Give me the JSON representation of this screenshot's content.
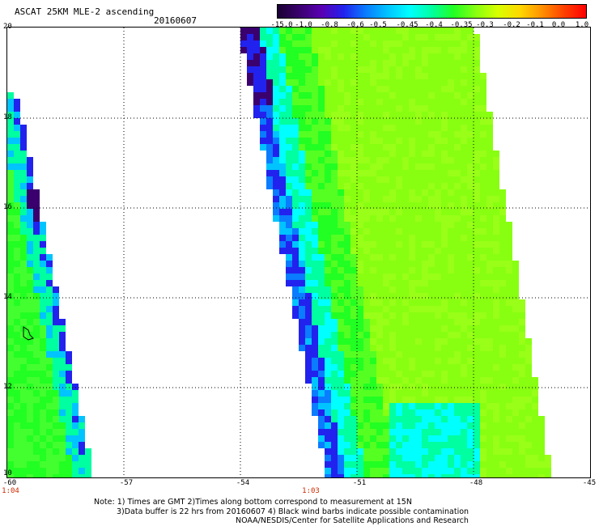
{
  "header": {
    "title": "ASCAT 25KM MLE-2 ascending",
    "date": "20160607"
  },
  "colorbar": {
    "labels": [
      "-15.0",
      "-1.0",
      "-0.8",
      "-0.6",
      "-0.5",
      "-0.45",
      "-0.4",
      "-0.35",
      "-0.3",
      "-0.2",
      "-0.1",
      "0.0",
      "1.0"
    ],
    "colors": [
      "#1a0033",
      "#3a006e",
      "#5a00b4",
      "#2222ee",
      "#0a7cff",
      "#00c4ff",
      "#00ffff",
      "#00ffa0",
      "#22ff22",
      "#88ff10",
      "#d8ff00",
      "#ffd800",
      "#ff9000",
      "#ff4000",
      "#ff0000"
    ]
  },
  "axes": {
    "lon_labels": [
      "-60",
      "-57",
      "-54",
      "-51",
      "-48",
      "-45"
    ],
    "lat_labels": [
      "20",
      "18",
      "16",
      "14",
      "12",
      "10"
    ],
    "lon_range": [
      -60,
      -45
    ],
    "lat_range": [
      10,
      20
    ]
  },
  "swath_times": [
    "1:04",
    "1:03"
  ],
  "notes": [
    "Note: 1) Times are GMT 2)Times along bottom correspond to measurement at 15N",
    "3)Data buffer is 22 hrs from 20160607 4) Black wind barbs indicate possible contamination",
    "NOAA/NESDIS/Center for Satellite Applications and Research"
  ]
}
